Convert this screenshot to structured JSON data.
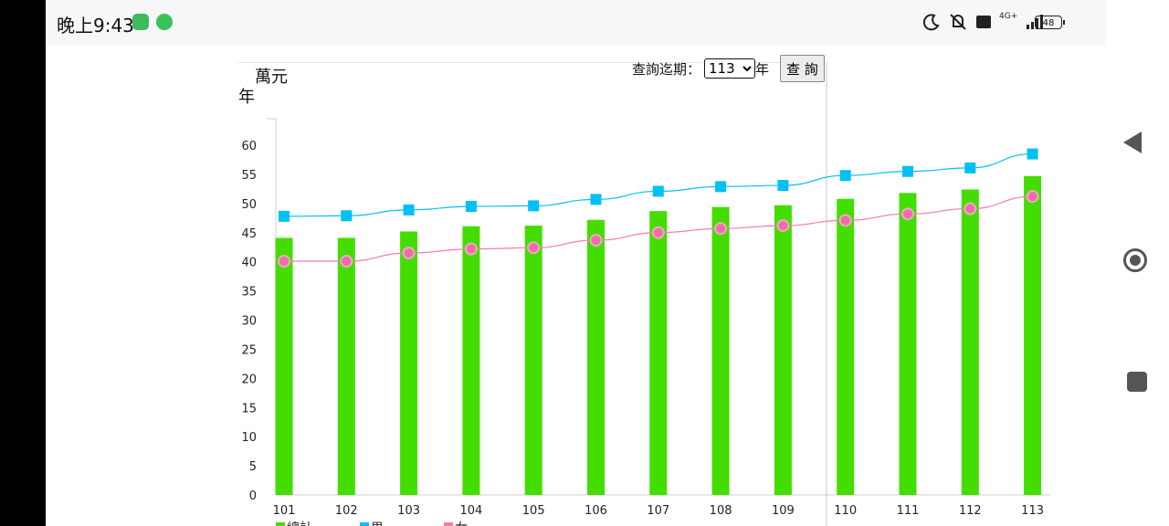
{
  "status_bar": {
    "time": "晚上9:43",
    "network_label": "4G+",
    "battery": "48",
    "icons": [
      "line-app-icon",
      "line-chat-icon",
      "moon-icon",
      "mute-icon",
      "volte-icon",
      "signal-icon",
      "battery-icon"
    ]
  },
  "query": {
    "label": "查詢迄期：",
    "selected_year": "113",
    "year_suffix": "年",
    "button_label": "查 詢"
  },
  "unit_label": "萬元",
  "axis_year_label": "年",
  "chart_data": {
    "type": "bar",
    "categories": [
      "101",
      "102",
      "103",
      "104",
      "105",
      "106",
      "107",
      "108",
      "109",
      "110",
      "111",
      "112",
      "113"
    ],
    "ylim": [
      0,
      60
    ],
    "yticks": [
      0,
      5,
      10,
      15,
      20,
      25,
      30,
      35,
      40,
      45,
      50,
      55,
      60
    ],
    "grid": false,
    "legend_position": "bottom-left",
    "series": [
      {
        "name": "總計",
        "type": "bar",
        "color": "#44dd00",
        "values": [
          44.1,
          44.1,
          45.2,
          46.1,
          46.2,
          47.2,
          48.7,
          49.4,
          49.7,
          50.8,
          51.8,
          52.4,
          54.7
        ]
      },
      {
        "name": "男",
        "type": "line",
        "marker": "square",
        "color": "#00c0f5",
        "values": [
          47.8,
          47.9,
          48.9,
          49.5,
          49.6,
          50.7,
          52.1,
          52.9,
          53.1,
          54.8,
          55.5,
          56.1,
          58.5
        ]
      },
      {
        "name": "女",
        "type": "line",
        "marker": "circle",
        "color": "#f27bb0",
        "values": [
          40.1,
          40.1,
          41.5,
          42.2,
          42.4,
          43.7,
          45.0,
          45.7,
          46.2,
          47.1,
          48.2,
          49.1,
          51.2
        ]
      }
    ]
  }
}
